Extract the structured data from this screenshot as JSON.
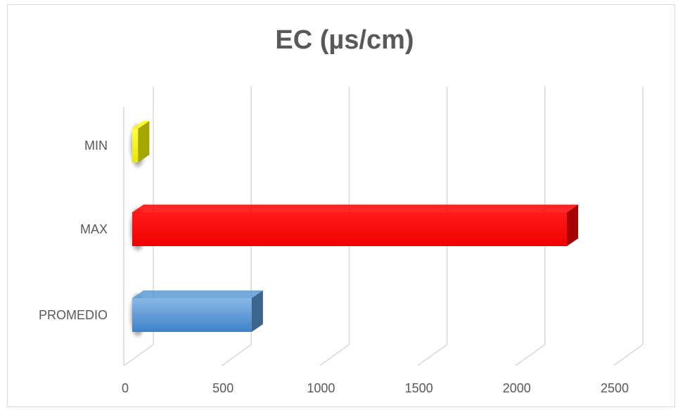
{
  "chart_data": {
    "type": "bar",
    "orientation": "horizontal",
    "three_d": true,
    "title": "EC (µs/cm)",
    "xlabel": "",
    "ylabel": "",
    "categories": [
      "PROMEDIO",
      "MAX",
      "MIN"
    ],
    "values": [
      610,
      2220,
      30
    ],
    "bar_colors": [
      "#5b9bd5",
      "#ff0000",
      "#ffff00"
    ],
    "xlim": [
      0,
      2500
    ],
    "x_ticks": [
      "0",
      "500",
      "1000",
      "1500",
      "2000",
      "2500"
    ],
    "grid": true,
    "legend": "none"
  }
}
